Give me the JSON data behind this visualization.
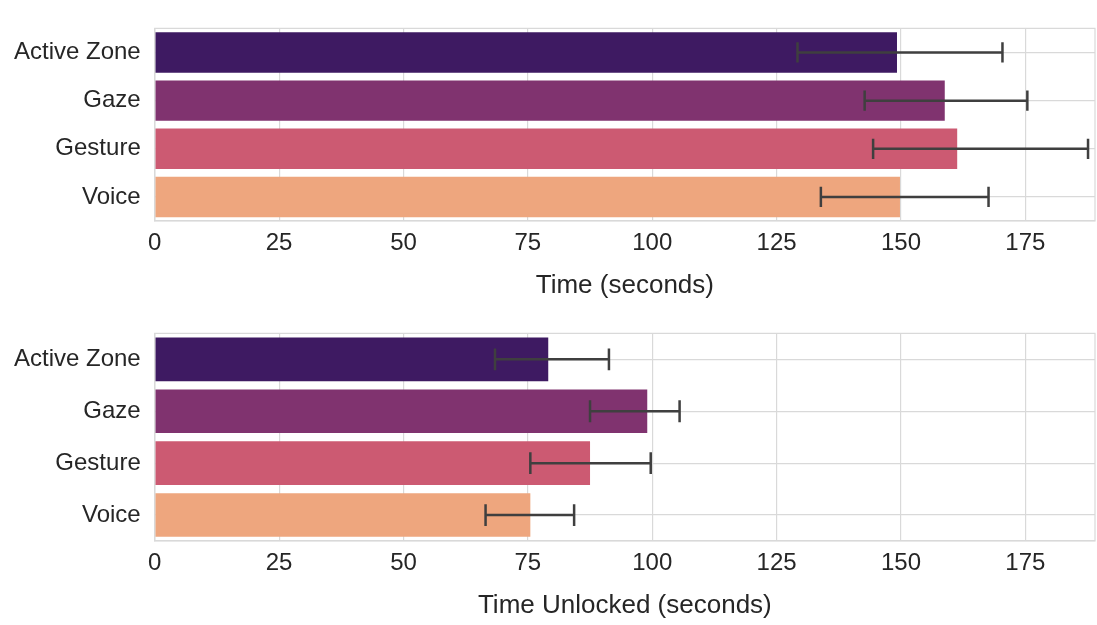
{
  "chart_data": [
    {
      "type": "bar",
      "orientation": "horizontal",
      "xlabel": "Time (seconds)",
      "categories": [
        "Active Zone",
        "Gaze",
        "Gesture",
        "Voice"
      ],
      "values": [
        149.2,
        158.8,
        161.3,
        149.8
      ],
      "errors": [
        [
          129.2,
          170.4
        ],
        [
          142.7,
          175.4
        ],
        [
          144.4,
          187.6
        ],
        [
          133.9,
          167.6
        ]
      ],
      "colors": [
        "#3e1a62",
        "#80336f",
        "#cc5a72",
        "#eea67e"
      ],
      "xlim": [
        0,
        189
      ],
      "xticks": [
        0,
        25,
        50,
        75,
        100,
        125,
        150,
        175
      ],
      "grid": true,
      "legend": false
    },
    {
      "type": "bar",
      "orientation": "horizontal",
      "xlabel": "Time Unlocked (seconds)",
      "categories": [
        "Active Zone",
        "Gaze",
        "Gesture",
        "Voice"
      ],
      "values": [
        79.1,
        99.0,
        87.5,
        75.5
      ],
      "errors": [
        [
          68.4,
          91.3
        ],
        [
          87.5,
          105.5
        ],
        [
          75.5,
          99.7
        ],
        [
          66.5,
          84.3
        ]
      ],
      "colors": [
        "#3e1a62",
        "#80336f",
        "#cc5a72",
        "#eea67e"
      ],
      "xlim": [
        0,
        189
      ],
      "xticks": [
        0,
        25,
        50,
        75,
        100,
        125,
        150,
        175
      ],
      "grid": true,
      "legend": false
    }
  ]
}
